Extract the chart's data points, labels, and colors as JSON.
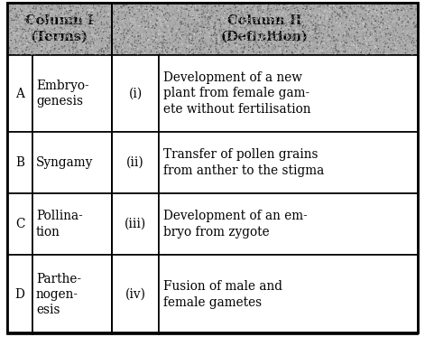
{
  "col1_header": "Column I\n(Terms)",
  "col2_header": "Column II\n(Definition)",
  "header_bg": "#999999",
  "border_color": "#000000",
  "rows": [
    {
      "letter": "A",
      "term": "Embryo-\ngenesis",
      "roman": "(i)",
      "definition": "Development of a new\nplant from female gam-\nete without fertilisation"
    },
    {
      "letter": "B",
      "term": "Syngamy",
      "roman": "(ii)",
      "definition": "Transfer of pollen grains\nfrom anther to the stigma"
    },
    {
      "letter": "C",
      "term": "Pollina-\ntion",
      "roman": "(iii)",
      "definition": "Development of an em-\nbryo from zygote"
    },
    {
      "letter": "D",
      "term": "Parthe-\nnogen-\nesis",
      "roman": "(iv)",
      "definition": "Fusion of male and\nfemale gametes"
    }
  ],
  "font_size_body": 9.8,
  "font_size_header": 10.5,
  "font_family": "serif"
}
